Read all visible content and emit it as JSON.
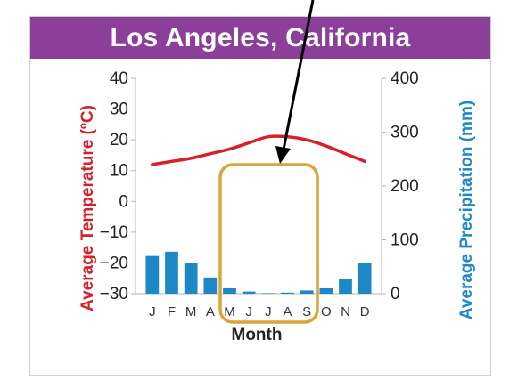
{
  "colors": {
    "title_bg": "#8b3f98",
    "temperature": "#d2232a",
    "precipitation": "#1e88c7",
    "highlight_box": "#d9a43a",
    "arrow": "#000000"
  },
  "chart_data": {
    "type": "bar",
    "title": "Los Angeles, California",
    "xlabel": "Month",
    "categories": [
      "J",
      "F",
      "M",
      "A",
      "M",
      "J",
      "J",
      "A",
      "S",
      "O",
      "N",
      "D"
    ],
    "y_left": {
      "label": "Average Temperature (ºC)",
      "ylim": [
        -30,
        40
      ],
      "ticks": [
        "40",
        "30",
        "20",
        "10",
        "0",
        "−10",
        "−20",
        "−30"
      ]
    },
    "y_right": {
      "label": "Average Precipitation (mm)",
      "ylim": [
        0,
        400
      ],
      "ticks": [
        "400",
        "300",
        "200",
        "100",
        "0"
      ]
    },
    "series": [
      {
        "name": "Average Temperature (ºC)",
        "type": "line",
        "values": [
          12,
          13,
          14,
          15.5,
          17,
          19,
          21,
          21,
          20,
          18,
          15.5,
          13
        ]
      },
      {
        "name": "Average Precipitation (mm)",
        "type": "bar",
        "values": [
          70,
          78,
          57,
          30,
          10,
          4,
          1,
          2,
          6,
          10,
          28,
          57
        ]
      }
    ],
    "grid": false,
    "annotations": [
      "arrow pointing to highlighted summer months",
      "highlight box around M–S months"
    ]
  }
}
